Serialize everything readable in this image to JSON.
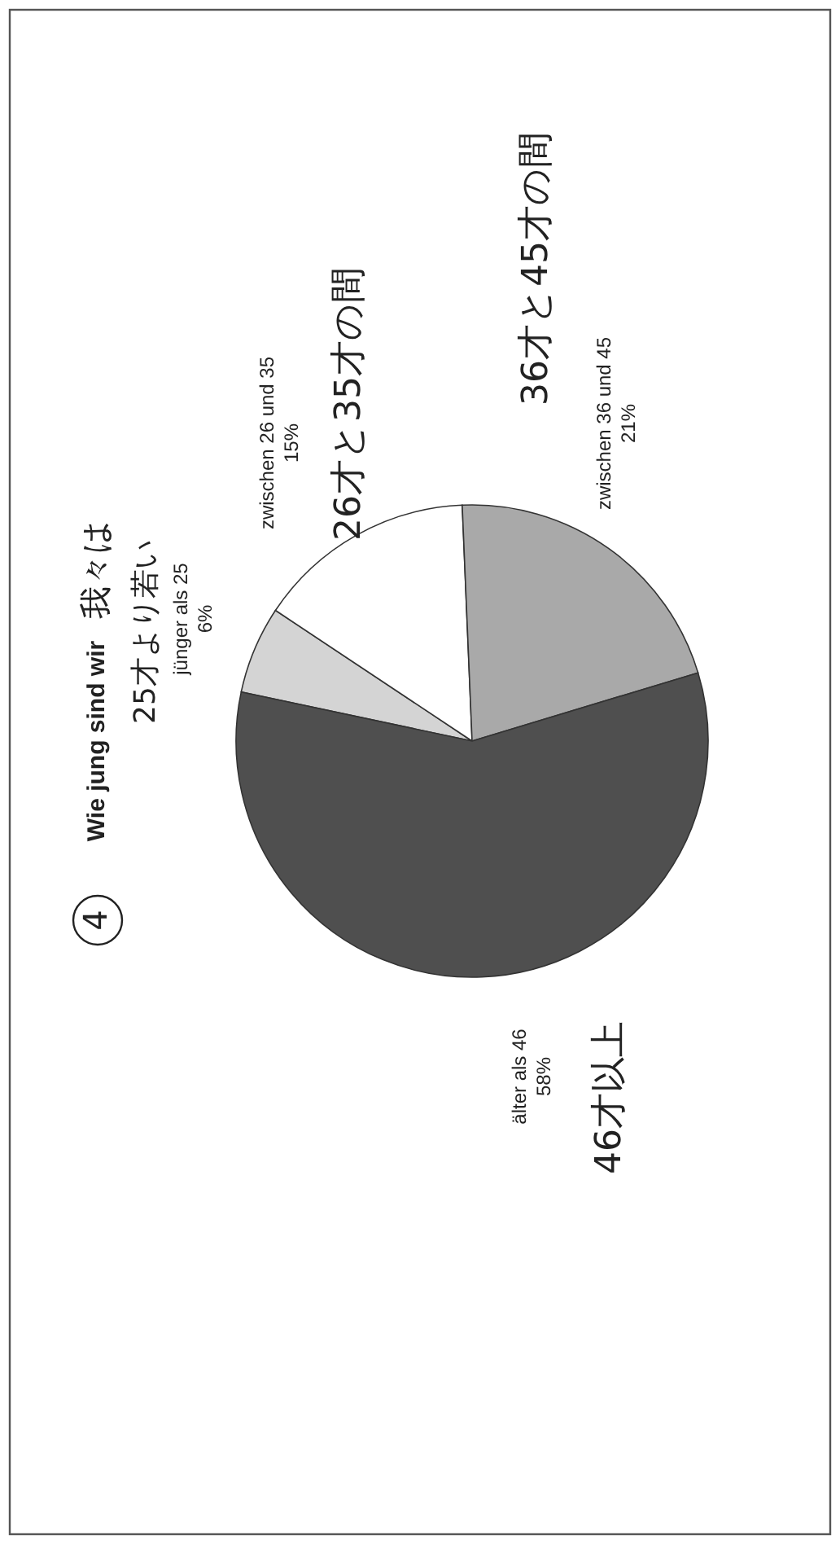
{
  "chart_data": {
    "type": "pie",
    "title": "Wie jung sind wir",
    "categories": [
      "jünger als 25",
      "zwischen 26 und 35",
      "zwischen 36 und 45",
      "älter als 46"
    ],
    "values": [
      6,
      15,
      21,
      58
    ],
    "value_labels": [
      "6%",
      "15%",
      "21%",
      "58%"
    ],
    "colors": [
      "#d4d4d4",
      "#ffffff",
      "#a9a9a9",
      "#4f4f4f"
    ],
    "annotations": [
      "4",
      "我々は",
      "25才より若い",
      "26才と35才の間",
      "36才と45才の間",
      "46才以上"
    ]
  }
}
